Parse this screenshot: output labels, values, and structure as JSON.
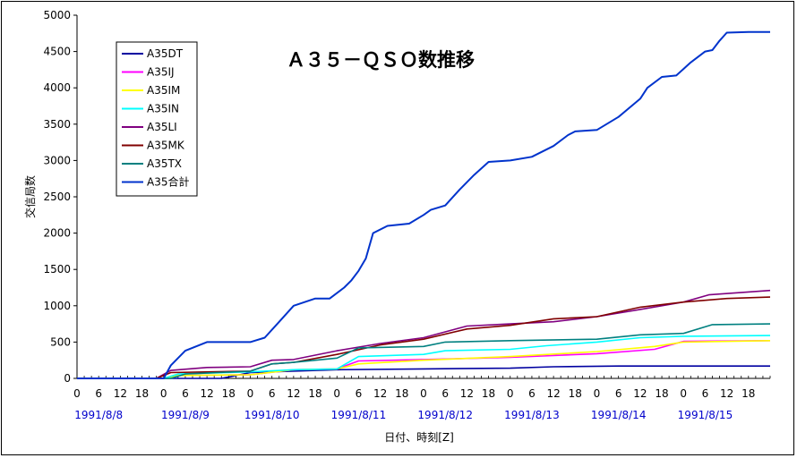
{
  "chart_data": {
    "type": "line",
    "title": "Ａ３５－ＱＳＯ数推移",
    "xlabel": "日付、時刻[Z]",
    "ylabel": "交信局数",
    "ylim": [
      0,
      5000
    ],
    "yticks": [
      0,
      500,
      1000,
      1500,
      2000,
      2500,
      3000,
      3500,
      4000,
      4500,
      5000
    ],
    "x_unit": "hours since 1991/8/8 0Z",
    "xlim": [
      0,
      192
    ],
    "hour_ticks": [
      "0",
      "6",
      "12",
      "18"
    ],
    "dates": [
      "1991/8/8",
      "1991/8/9",
      "1991/8/10",
      "1991/8/11",
      "1991/8/12",
      "1991/8/13",
      "1991/8/14",
      "1991/8/15"
    ],
    "grid": false,
    "legend_position": "top-left",
    "series": [
      {
        "name": "A35DT",
        "color": "#0000a0",
        "points": [
          [
            0,
            0
          ],
          [
            40,
            0
          ],
          [
            48,
            80
          ],
          [
            72,
            120
          ],
          [
            96,
            130
          ],
          [
            120,
            140
          ],
          [
            132,
            160
          ],
          [
            150,
            170
          ],
          [
            192,
            170
          ]
        ]
      },
      {
        "name": "A35IJ",
        "color": "#ff00ff",
        "points": [
          [
            0,
            0
          ],
          [
            24,
            0
          ],
          [
            28,
            40
          ],
          [
            48,
            50
          ],
          [
            60,
            120
          ],
          [
            72,
            130
          ],
          [
            78,
            240
          ],
          [
            96,
            260
          ],
          [
            120,
            290
          ],
          [
            144,
            340
          ],
          [
            160,
            400
          ],
          [
            168,
            510
          ],
          [
            192,
            520
          ]
        ]
      },
      {
        "name": "A35IM",
        "color": "#ffff00",
        "points": [
          [
            0,
            0
          ],
          [
            24,
            0
          ],
          [
            28,
            40
          ],
          [
            48,
            50
          ],
          [
            60,
            120
          ],
          [
            72,
            130
          ],
          [
            78,
            200
          ],
          [
            96,
            250
          ],
          [
            120,
            300
          ],
          [
            144,
            370
          ],
          [
            160,
            440
          ],
          [
            168,
            500
          ],
          [
            192,
            520
          ]
        ]
      },
      {
        "name": "A35IN",
        "color": "#00ffff",
        "points": [
          [
            0,
            0
          ],
          [
            24,
            0
          ],
          [
            28,
            60
          ],
          [
            48,
            90
          ],
          [
            60,
            120
          ],
          [
            72,
            130
          ],
          [
            78,
            300
          ],
          [
            96,
            330
          ],
          [
            102,
            380
          ],
          [
            120,
            400
          ],
          [
            130,
            450
          ],
          [
            144,
            500
          ],
          [
            156,
            560
          ],
          [
            168,
            580
          ],
          [
            192,
            590
          ]
        ]
      },
      {
        "name": "A35LI",
        "color": "#800080",
        "points": [
          [
            0,
            0
          ],
          [
            22,
            0
          ],
          [
            26,
            110
          ],
          [
            36,
            150
          ],
          [
            48,
            160
          ],
          [
            54,
            250
          ],
          [
            60,
            260
          ],
          [
            72,
            380
          ],
          [
            84,
            480
          ],
          [
            96,
            560
          ],
          [
            108,
            720
          ],
          [
            120,
            750
          ],
          [
            132,
            780
          ],
          [
            144,
            850
          ],
          [
            156,
            950
          ],
          [
            168,
            1050
          ],
          [
            175,
            1150
          ],
          [
            192,
            1210
          ]
        ]
      },
      {
        "name": "A35MK",
        "color": "#800000",
        "points": [
          [
            0,
            0
          ],
          [
            22,
            0
          ],
          [
            26,
            80
          ],
          [
            48,
            100
          ],
          [
            54,
            200
          ],
          [
            60,
            220
          ],
          [
            72,
            330
          ],
          [
            84,
            460
          ],
          [
            96,
            540
          ],
          [
            108,
            680
          ],
          [
            120,
            730
          ],
          [
            132,
            820
          ],
          [
            144,
            850
          ],
          [
            156,
            980
          ],
          [
            168,
            1050
          ],
          [
            180,
            1100
          ],
          [
            192,
            1120
          ]
        ]
      },
      {
        "name": "A35TX",
        "color": "#008080",
        "points": [
          [
            0,
            0
          ],
          [
            26,
            0
          ],
          [
            30,
            60
          ],
          [
            48,
            100
          ],
          [
            54,
            200
          ],
          [
            60,
            220
          ],
          [
            72,
            280
          ],
          [
            78,
            420
          ],
          [
            96,
            440
          ],
          [
            102,
            500
          ],
          [
            120,
            520
          ],
          [
            144,
            540
          ],
          [
            156,
            600
          ],
          [
            168,
            620
          ],
          [
            176,
            740
          ],
          [
            192,
            750
          ]
        ]
      },
      {
        "name": "A35合計",
        "color": "#0033cc",
        "points": [
          [
            0,
            0
          ],
          [
            24,
            0
          ],
          [
            26,
            180
          ],
          [
            30,
            380
          ],
          [
            36,
            500
          ],
          [
            48,
            500
          ],
          [
            52,
            560
          ],
          [
            56,
            780
          ],
          [
            60,
            1000
          ],
          [
            66,
            1100
          ],
          [
            70,
            1100
          ],
          [
            74,
            1250
          ],
          [
            76,
            1350
          ],
          [
            78,
            1480
          ],
          [
            80,
            1650
          ],
          [
            82,
            2000
          ],
          [
            86,
            2100
          ],
          [
            92,
            2130
          ],
          [
            96,
            2250
          ],
          [
            98,
            2320
          ],
          [
            102,
            2380
          ],
          [
            106,
            2600
          ],
          [
            110,
            2800
          ],
          [
            114,
            2980
          ],
          [
            120,
            3000
          ],
          [
            126,
            3050
          ],
          [
            132,
            3200
          ],
          [
            136,
            3350
          ],
          [
            138,
            3400
          ],
          [
            144,
            3420
          ],
          [
            150,
            3600
          ],
          [
            156,
            3850
          ],
          [
            158,
            4000
          ],
          [
            162,
            4150
          ],
          [
            166,
            4170
          ],
          [
            170,
            4350
          ],
          [
            174,
            4500
          ],
          [
            176,
            4520
          ],
          [
            178,
            4650
          ],
          [
            180,
            4760
          ],
          [
            186,
            4770
          ],
          [
            192,
            4770
          ]
        ]
      }
    ]
  }
}
